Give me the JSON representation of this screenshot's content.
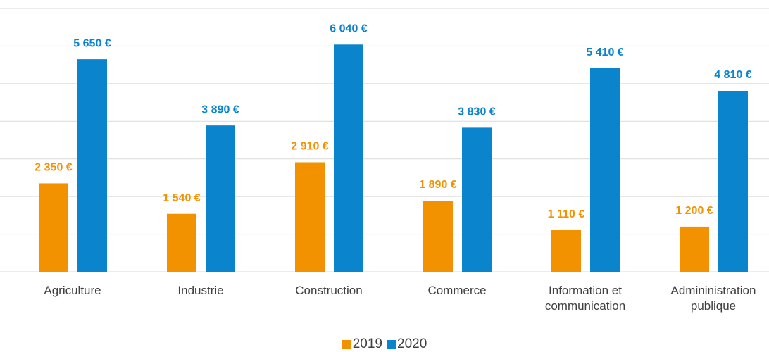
{
  "chart_data": {
    "type": "bar",
    "categories": [
      "Agriculture",
      "Industrie",
      "Construction",
      "Commerce",
      "Information et communication",
      "Admininistration publique"
    ],
    "series": [
      {
        "name": "2019",
        "color": "#f39200",
        "values": [
          2350,
          1540,
          2910,
          1890,
          1110,
          1200
        ],
        "value_labels": [
          "2 350 €",
          "1 540 €",
          "2 910 €",
          "1 890 €",
          "1 110 €",
          "1 200 €"
        ]
      },
      {
        "name": "2020",
        "color": "#0a84cc",
        "values": [
          5650,
          3890,
          6040,
          3830,
          5410,
          4810
        ],
        "value_labels": [
          "5 650 €",
          "3 890 €",
          "6 040 €",
          "3 830 €",
          "5 410 €",
          "4 810 €"
        ]
      }
    ],
    "ylim": [
      0,
      7000
    ],
    "yticks": [
      0,
      1000,
      2000,
      3000,
      4000,
      5000,
      6000,
      7000
    ],
    "grid": true,
    "legend": "bottom"
  }
}
